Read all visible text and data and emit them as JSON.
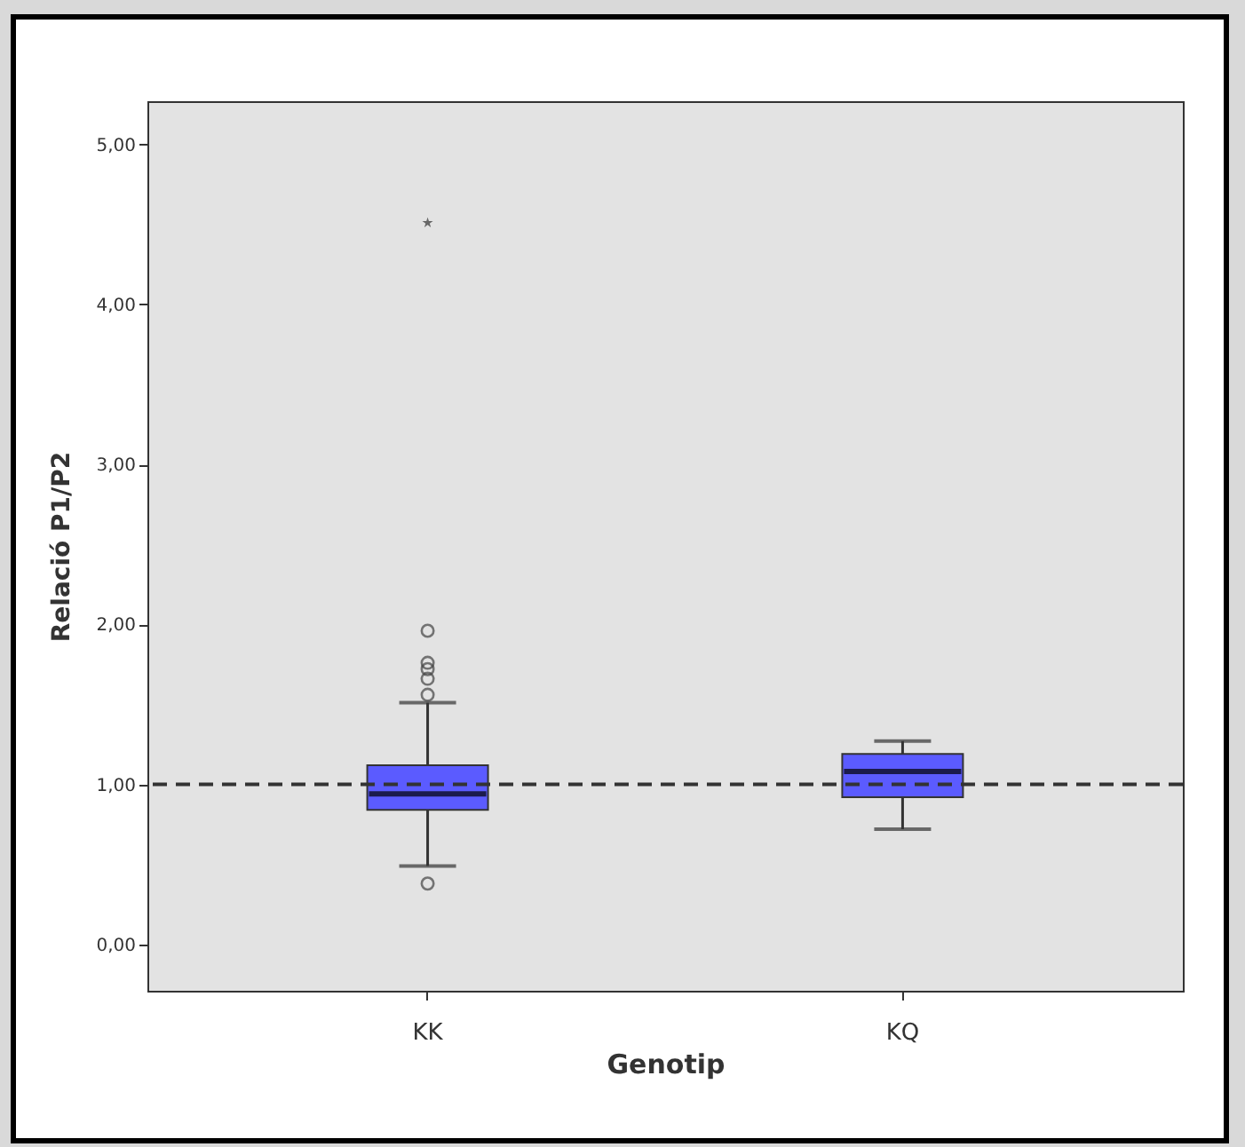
{
  "chart_data": {
    "type": "box",
    "xlabel": "Genotip",
    "ylabel": "Relació P1/P2",
    "categories": [
      "KK",
      "KQ"
    ],
    "series": [
      {
        "type": "box",
        "color": "#5b5bff",
        "boxes": [
          {
            "low": 0.49,
            "q1": 0.84,
            "median": 0.94,
            "q3": 1.12,
            "high": 1.51,
            "outliers": [
              0.38,
              1.56,
              1.66,
              1.72,
              1.76,
              1.96
            ]
          },
          {
            "low": 0.72,
            "q1": 0.92,
            "median": 1.08,
            "q3": 1.19,
            "high": 1.27
          }
        ]
      },
      {
        "type": "scatter",
        "marker": "star",
        "color": "#333333",
        "x": [
          "KK"
        ],
        "values": [
          4.51
        ]
      }
    ],
    "ylim": [
      -0.29,
      5.27
    ],
    "yticks": [
      {
        "value": 0,
        "label": "0,00"
      },
      {
        "value": 1,
        "label": "1,00"
      },
      {
        "value": 2,
        "label": "2,00"
      },
      {
        "value": 3,
        "label": "3,00"
      },
      {
        "value": 4,
        "label": "4,00"
      },
      {
        "value": 5,
        "label": "5,00"
      }
    ],
    "ref_lines": [
      {
        "axis": "y",
        "value": 1,
        "line_style": "dashed",
        "color": "#333333"
      }
    ],
    "grid": false
  }
}
